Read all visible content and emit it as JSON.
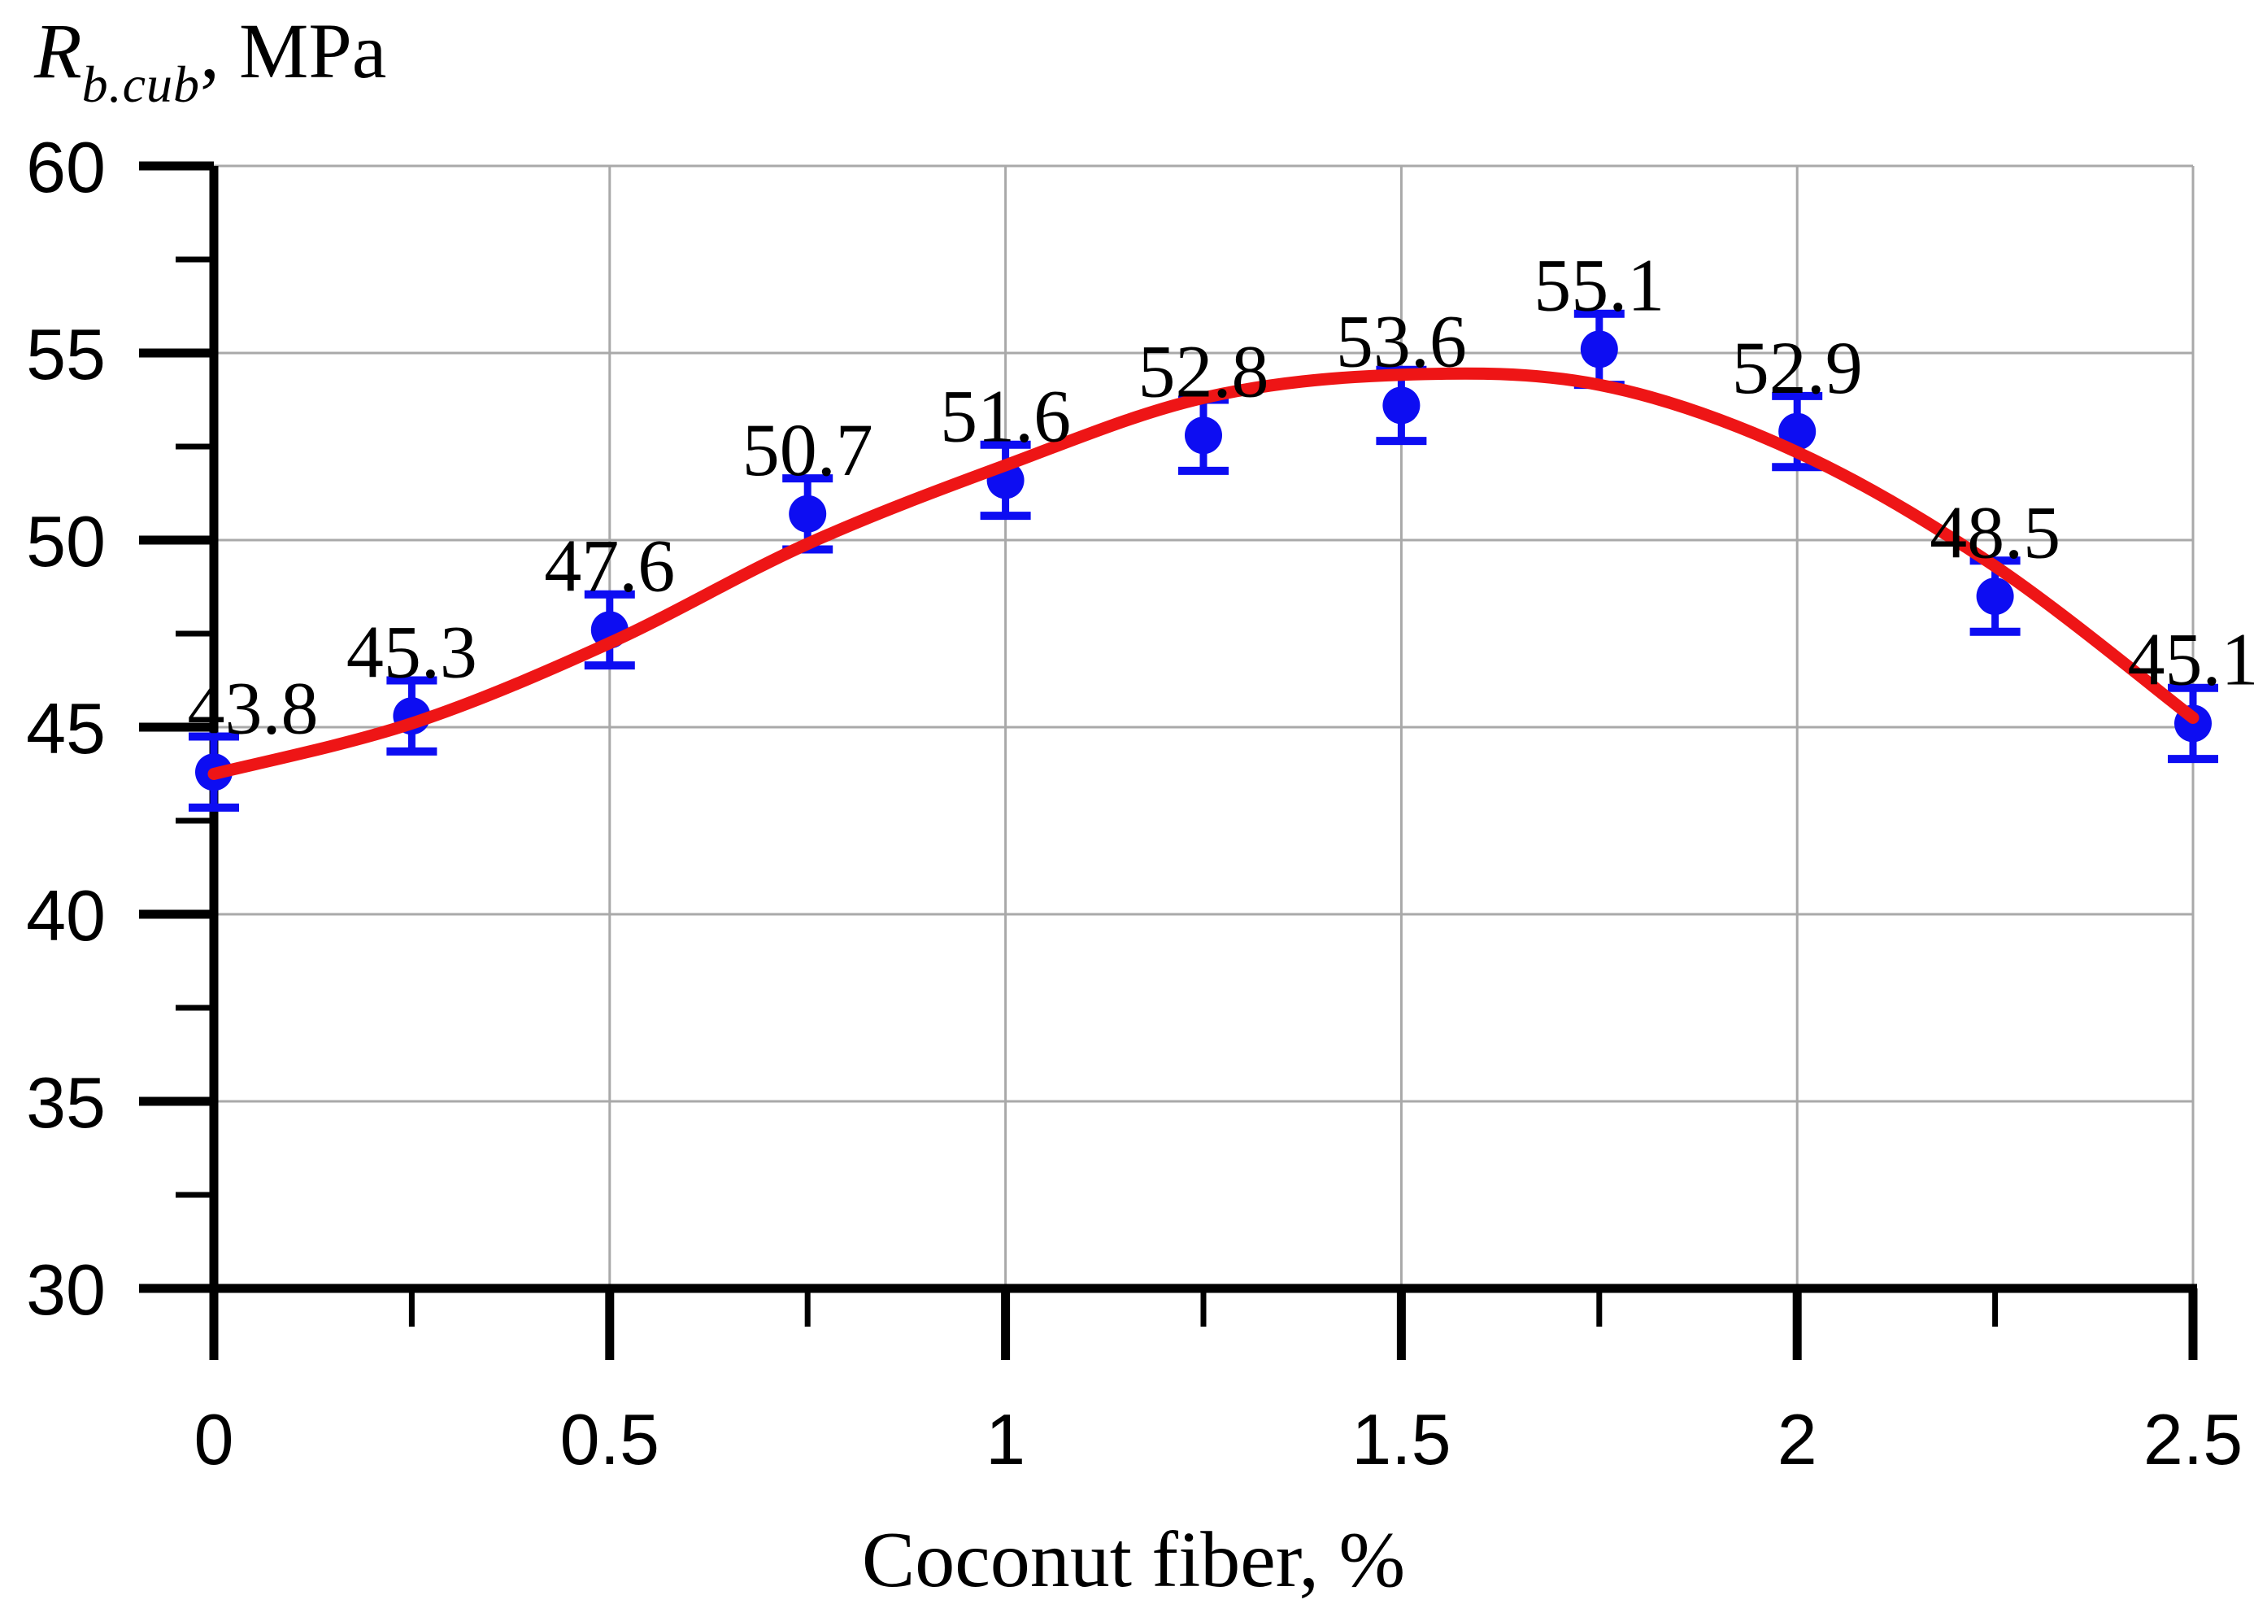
{
  "figure": {
    "y_axis_title": {
      "symbol": "R",
      "subscript": "b.cub",
      "unit": ", MPa"
    },
    "x_axis_title": "Coconut fiber, %"
  },
  "chart_data": {
    "type": "scatter",
    "title": "",
    "xlabel": "Coconut fiber, %",
    "ylabel": "R_b.cub, MPa",
    "grid": true,
    "legend_position": "none",
    "x_axis": {
      "min": 0,
      "max": 2.5,
      "major_ticks": [
        0,
        0.5,
        1,
        1.5,
        2,
        2.5
      ],
      "major_tick_labels": [
        "0",
        "0.5",
        "1",
        "1.5",
        "2",
        "2.5"
      ],
      "minor_ticks": [
        0.25,
        0.75,
        1.25,
        1.75,
        2.25
      ]
    },
    "y_axis": {
      "min": 30,
      "max": 60,
      "major_ticks": [
        30,
        35,
        40,
        45,
        50,
        55,
        60
      ],
      "major_tick_labels": [
        "30",
        "35",
        "40",
        "45",
        "50",
        "55",
        "60"
      ],
      "minor_ticks": [
        32.5,
        37.5,
        42.5,
        47.5,
        52.5,
        57.5
      ]
    },
    "series": [
      {
        "name": "measured-points",
        "type": "scatter-with-error-bars",
        "x": [
          0,
          0.25,
          0.5,
          0.75,
          1,
          1.25,
          1.5,
          1.75,
          2,
          2.25,
          2.5
        ],
        "y": [
          43.8,
          45.3,
          47.6,
          50.7,
          51.6,
          52.8,
          53.6,
          55.1,
          52.9,
          48.5,
          45.1
        ],
        "labels": [
          "43.8",
          "45.3",
          "47.6",
          "50.7",
          "51.6",
          "52.8",
          "53.6",
          "55.1",
          "52.9",
          "48.5",
          "45.1"
        ],
        "y_error": 0.95
      },
      {
        "name": "fit-curve",
        "type": "line",
        "x": [
          0,
          0.25,
          0.5,
          0.75,
          1,
          1.25,
          1.5,
          1.75,
          2,
          2.25,
          2.5
        ],
        "y": [
          43.75,
          45.1,
          47.25,
          49.9,
          52.0,
          53.8,
          54.42,
          54.15,
          52.35,
          49.3,
          45.25
        ]
      }
    ],
    "colors": {
      "marker": "#0d0df2",
      "fit_line": "#ee1516",
      "grid": "#a9a9a9",
      "axis": "#000000"
    }
  }
}
